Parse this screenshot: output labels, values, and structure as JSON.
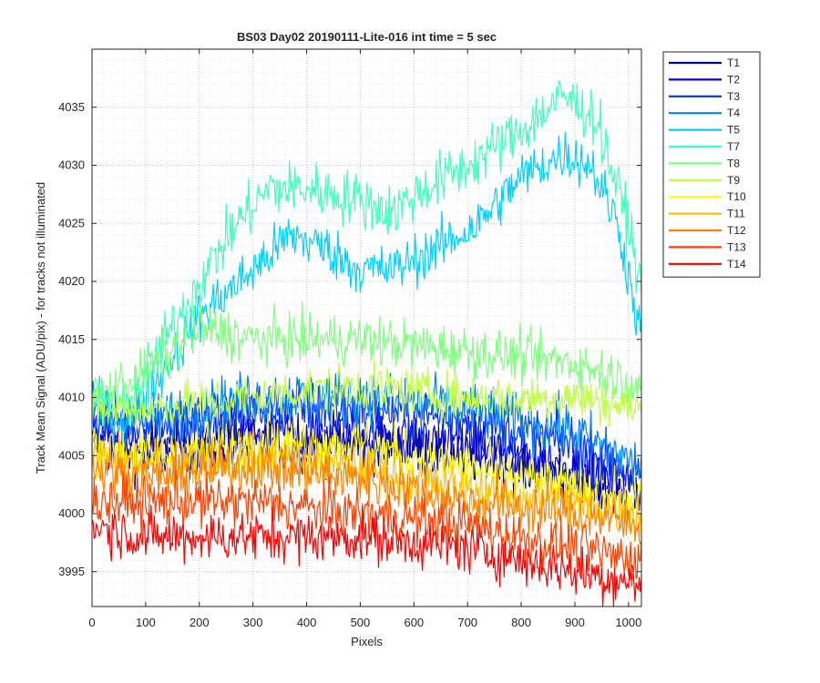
{
  "chart_data": {
    "type": "line",
    "title": "BS03 Day02 20190111-Lite-016 int time = 5 sec",
    "xlabel": "Pixels",
    "ylabel": "Track Mean Signal (ADU/pix) - for tracks not illuminated",
    "xlim": [
      0,
      1024
    ],
    "ylim": [
      3992,
      4040
    ],
    "xticks": [
      0,
      100,
      200,
      300,
      400,
      500,
      600,
      700,
      800,
      900,
      1000
    ],
    "yticks": [
      3995,
      4000,
      4005,
      4010,
      4015,
      4020,
      4025,
      4030,
      4035
    ],
    "grid": "major and minor dotted",
    "legend_position": "outside-top-right",
    "series": [
      {
        "name": "T1",
        "color": "#00008f",
        "noise": 1.2,
        "profile": [
          [
            0,
            4006
          ],
          [
            100,
            4005
          ],
          [
            300,
            4006
          ],
          [
            500,
            4006
          ],
          [
            700,
            4005
          ],
          [
            900,
            4003
          ],
          [
            1024,
            4001
          ]
        ]
      },
      {
        "name": "T2",
        "color": "#0000df",
        "noise": 1.2,
        "profile": [
          [
            0,
            4007
          ],
          [
            100,
            4006
          ],
          [
            300,
            4007
          ],
          [
            500,
            4007
          ],
          [
            700,
            4006
          ],
          [
            900,
            4004
          ],
          [
            1024,
            4002
          ]
        ]
      },
      {
        "name": "T3",
        "color": "#0030ff",
        "noise": 1.2,
        "profile": [
          [
            0,
            4008
          ],
          [
            100,
            4008
          ],
          [
            300,
            4009
          ],
          [
            500,
            4009
          ],
          [
            700,
            4008
          ],
          [
            900,
            4006
          ],
          [
            1024,
            4003
          ]
        ]
      },
      {
        "name": "T4",
        "color": "#0080ff",
        "noise": 1.2,
        "profile": [
          [
            0,
            4009
          ],
          [
            100,
            4008
          ],
          [
            300,
            4010
          ],
          [
            500,
            4010
          ],
          [
            700,
            4009
          ],
          [
            900,
            4007
          ],
          [
            1024,
            4004
          ]
        ]
      },
      {
        "name": "T5",
        "color": "#00cfff",
        "noise": 1.1,
        "profile": [
          [
            0,
            4009
          ],
          [
            60,
            4008
          ],
          [
            100,
            4010
          ],
          [
            200,
            4017
          ],
          [
            300,
            4021
          ],
          [
            370,
            4024
          ],
          [
            430,
            4023
          ],
          [
            500,
            4021
          ],
          [
            560,
            4021
          ],
          [
            650,
            4023
          ],
          [
            720,
            4025
          ],
          [
            800,
            4029
          ],
          [
            880,
            4031
          ],
          [
            930,
            4030
          ],
          [
            980,
            4025
          ],
          [
            1024,
            4015
          ]
        ]
      },
      {
        "name": "T7",
        "color": "#40ffbf",
        "noise": 1.2,
        "profile": [
          [
            0,
            4010
          ],
          [
            60,
            4009
          ],
          [
            100,
            4012
          ],
          [
            200,
            4020
          ],
          [
            270,
            4025
          ],
          [
            330,
            4028
          ],
          [
            400,
            4028
          ],
          [
            500,
            4027
          ],
          [
            560,
            4026
          ],
          [
            620,
            4028
          ],
          [
            700,
            4030
          ],
          [
            800,
            4033
          ],
          [
            880,
            4036
          ],
          [
            940,
            4034
          ],
          [
            1000,
            4025
          ],
          [
            1024,
            4019
          ]
        ]
      },
      {
        "name": "T8",
        "color": "#80ff80",
        "noise": 1.1,
        "profile": [
          [
            0,
            4010
          ],
          [
            100,
            4012
          ],
          [
            200,
            4016
          ],
          [
            300,
            4015
          ],
          [
            500,
            4015
          ],
          [
            700,
            4014
          ],
          [
            900,
            4013
          ],
          [
            1024,
            4011
          ]
        ]
      },
      {
        "name": "T9",
        "color": "#bfff40",
        "noise": 1.0,
        "profile": [
          [
            0,
            4009
          ],
          [
            100,
            4009
          ],
          [
            300,
            4010
          ],
          [
            500,
            4011
          ],
          [
            700,
            4010
          ],
          [
            900,
            4010
          ],
          [
            1024,
            4009
          ]
        ]
      },
      {
        "name": "T10",
        "color": "#ffff00",
        "noise": 1.1,
        "profile": [
          [
            0,
            4006
          ],
          [
            100,
            4005
          ],
          [
            300,
            4006
          ],
          [
            500,
            4006
          ],
          [
            700,
            4004
          ],
          [
            900,
            4002
          ],
          [
            1024,
            4001
          ]
        ]
      },
      {
        "name": "T11",
        "color": "#ffbf00",
        "noise": 1.1,
        "profile": [
          [
            0,
            4005
          ],
          [
            100,
            4004
          ],
          [
            300,
            4005
          ],
          [
            500,
            4004
          ],
          [
            700,
            4002
          ],
          [
            900,
            4001
          ],
          [
            1024,
            4000
          ]
        ]
      },
      {
        "name": "T12",
        "color": "#ff8000",
        "noise": 1.1,
        "profile": [
          [
            0,
            4004
          ],
          [
            100,
            4003
          ],
          [
            300,
            4004
          ],
          [
            500,
            4003
          ],
          [
            700,
            4001
          ],
          [
            900,
            4000
          ],
          [
            1024,
            3999
          ]
        ]
      },
      {
        "name": "T13",
        "color": "#ff4000",
        "noise": 1.1,
        "profile": [
          [
            0,
            4001
          ],
          [
            100,
            4001
          ],
          [
            300,
            4001
          ],
          [
            500,
            4000
          ],
          [
            700,
            3999
          ],
          [
            900,
            3997
          ],
          [
            1024,
            3996
          ]
        ]
      },
      {
        "name": "T14",
        "color": "#ff0000",
        "noise": 1.1,
        "profile": [
          [
            0,
            3999
          ],
          [
            100,
            3998
          ],
          [
            300,
            3998
          ],
          [
            500,
            3998
          ],
          [
            700,
            3997
          ],
          [
            900,
            3995
          ],
          [
            1024,
            3994
          ]
        ]
      }
    ]
  }
}
